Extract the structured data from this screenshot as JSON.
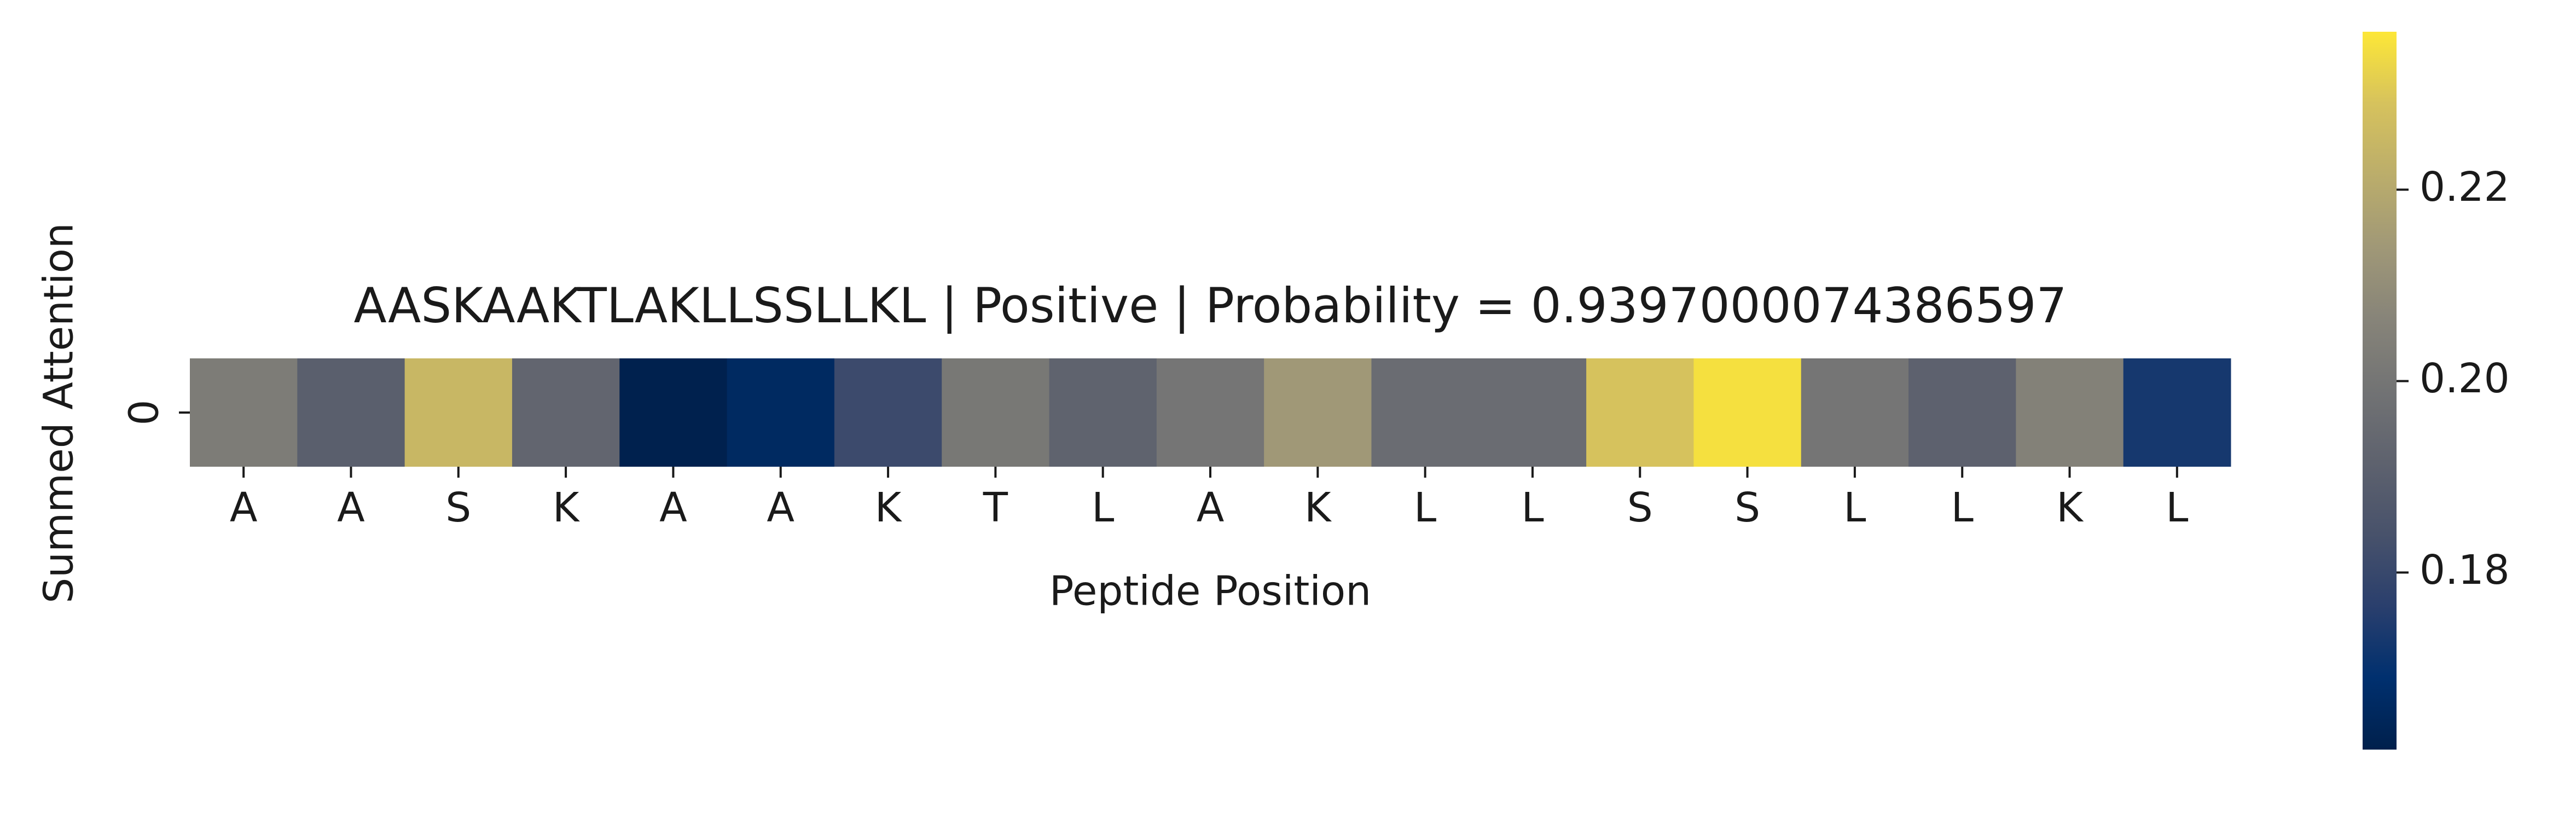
{
  "chart_data": {
    "type": "heatmap",
    "title": "AASKAAKTLAKLLSSLLKL | Positive | Probability = 0.9397000074386597",
    "xlabel": "Peptide Position",
    "ylabel": "Summed Attention",
    "x_ticks": [
      "A",
      "A",
      "S",
      "K",
      "A",
      "A",
      "K",
      "T",
      "L",
      "A",
      "K",
      "L",
      "L",
      "S",
      "S",
      "L",
      "L",
      "K",
      "L"
    ],
    "y_ticks": [
      "0"
    ],
    "values": [
      [
        0.203,
        0.19,
        0.225,
        0.193,
        0.162,
        0.166,
        0.181,
        0.201,
        0.192,
        0.2,
        0.214,
        0.196,
        0.196,
        0.229,
        0.235,
        0.2,
        0.191,
        0.205,
        0.173
      ]
    ],
    "colormap": "cividis",
    "colorbar": {
      "range": [
        0.1615,
        0.2365
      ],
      "ticks": [
        "0.18",
        "0.20",
        "0.22"
      ],
      "tick_values": [
        0.18,
        0.2,
        0.22
      ]
    },
    "grid": false
  }
}
